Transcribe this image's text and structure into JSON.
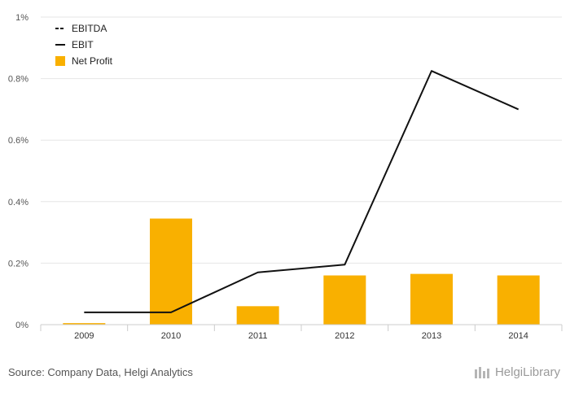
{
  "chart_data": {
    "type": "bar+line",
    "categories": [
      "2009",
      "2010",
      "2011",
      "2012",
      "2013",
      "2014"
    ],
    "series": [
      {
        "name": "EBITDA",
        "kind": "line",
        "style": "dashed",
        "values": [
          null,
          null,
          null,
          null,
          null,
          null
        ]
      },
      {
        "name": "EBIT",
        "kind": "line",
        "style": "solid",
        "values": [
          0.04,
          0.04,
          0.17,
          0.195,
          0.825,
          0.7
        ]
      },
      {
        "name": "Net Profit",
        "kind": "bar",
        "values": [
          0.005,
          0.345,
          0.06,
          0.16,
          0.165,
          0.16
        ]
      }
    ],
    "yticks": [
      0,
      0.2,
      0.4,
      0.6,
      0.8,
      1.0
    ],
    "ytick_labels": [
      "0%",
      "0.2%",
      "0.4%",
      "0.6%",
      "0.8%",
      "1%"
    ],
    "ylim": [
      0,
      1.0
    ],
    "legend_position": "top-left",
    "colors": {
      "bar": "#f9b000",
      "line": "#111111",
      "grid": "#e6e6e6",
      "axis": "#cccccc"
    }
  },
  "footer": {
    "source": "Source: Company Data, Helgi Analytics",
    "brand": "HelgiLibrary"
  }
}
